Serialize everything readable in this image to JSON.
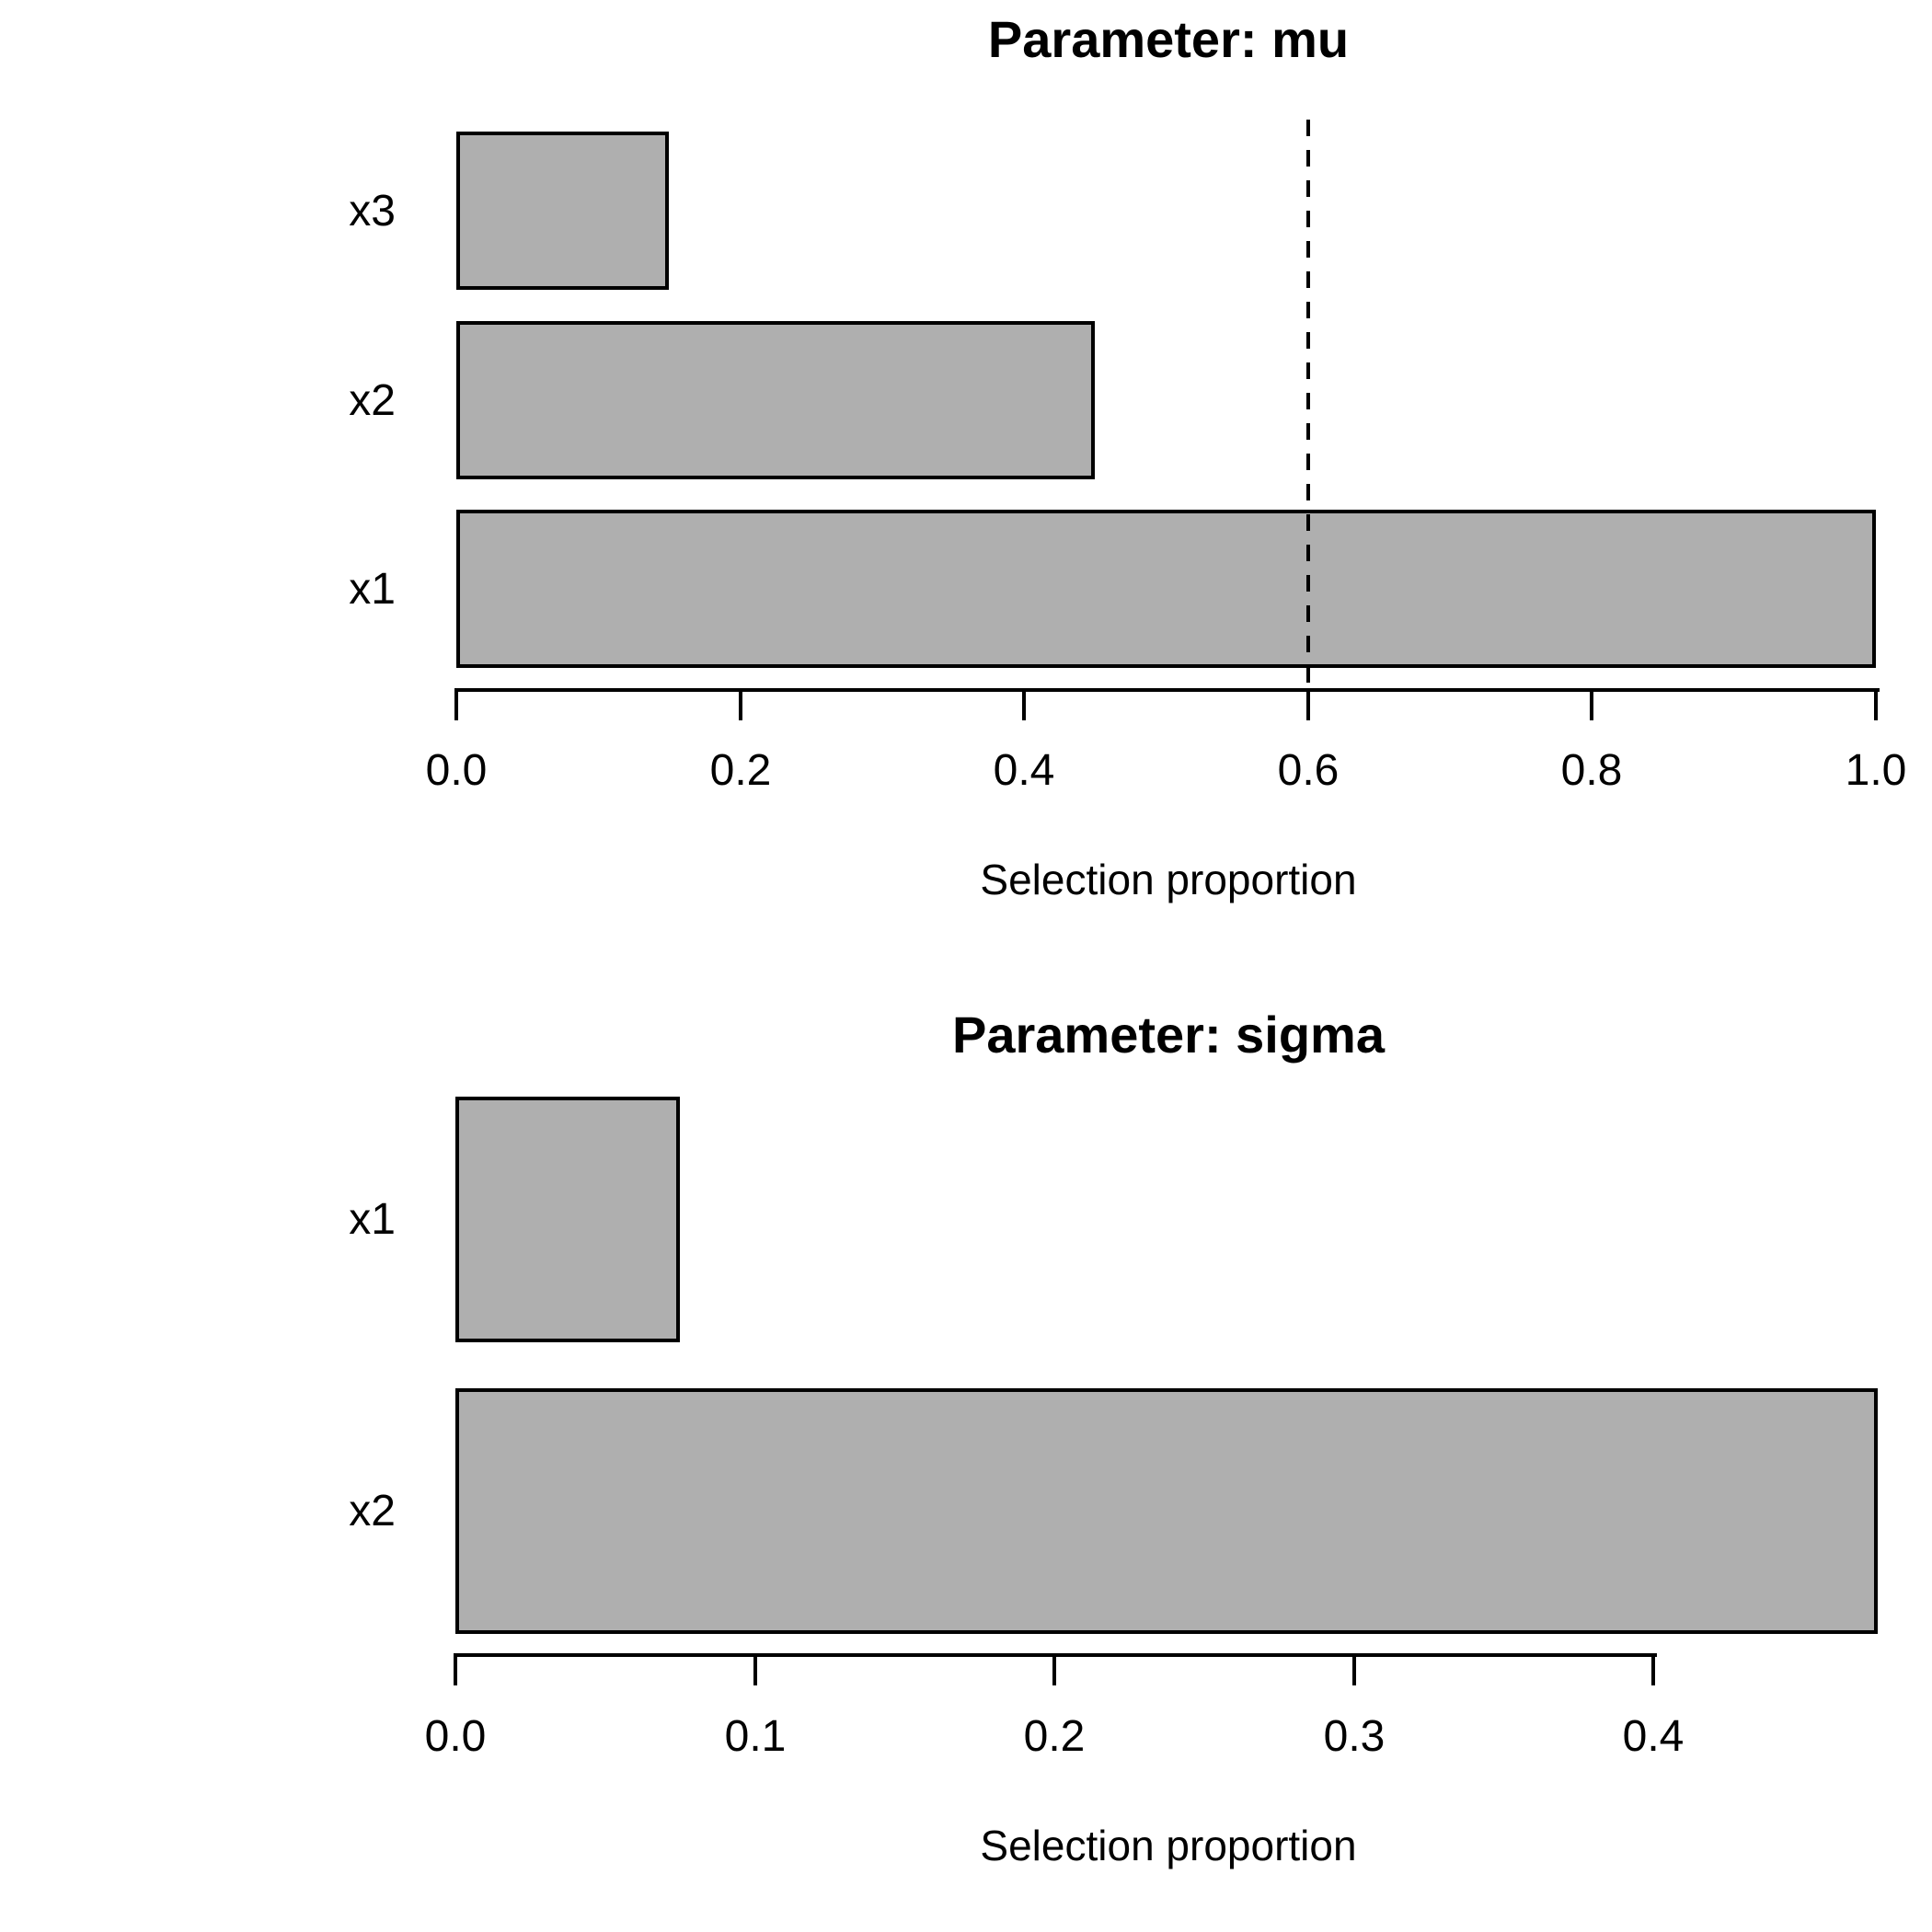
{
  "figure": {
    "background_color": "#FFFFFF",
    "bar_fill_color": "#AFAFAF",
    "bar_border_color": "#000000",
    "text_color": "#000000"
  },
  "chart_data": [
    {
      "type": "bar",
      "orientation": "horizontal",
      "title": "Parameter: mu",
      "xlabel": "Selection proportion",
      "bars_top_to_bottom": [
        {
          "label": "x3",
          "value": 0.15
        },
        {
          "label": "x2",
          "value": 0.45
        },
        {
          "label": "x1",
          "value": 1.0
        }
      ],
      "xlim": [
        0,
        1.0
      ],
      "xticks": {
        "values": [
          0,
          0.2,
          0.4,
          0.6,
          0.8,
          1.0
        ],
        "labels": [
          "0.0",
          "0.2",
          "0.4",
          "0.6",
          "0.8",
          "1.0"
        ]
      },
      "reference_line": {
        "value": 0.6,
        "style": "dashed",
        "orientation": "vertical"
      },
      "bar_fill": "#AFAFAF",
      "bar_border": "#000000",
      "grid": "off",
      "legend": "none"
    },
    {
      "type": "bar",
      "orientation": "horizontal",
      "title": "Parameter: sigma",
      "xlabel": "Selection proportion",
      "bars_top_to_bottom": [
        {
          "label": "x1",
          "value": 0.075
        },
        {
          "label": "x2",
          "value": 0.475
        }
      ],
      "xlim": [
        0,
        0.475
      ],
      "xticks": {
        "values": [
          0,
          0.1,
          0.2,
          0.3,
          0.4
        ],
        "labels": [
          "0.0",
          "0.1",
          "0.2",
          "0.3",
          "0.4"
        ]
      },
      "reference_line": null,
      "bar_fill": "#AFAFAF",
      "bar_border": "#000000",
      "grid": "off",
      "legend": "none"
    }
  ]
}
